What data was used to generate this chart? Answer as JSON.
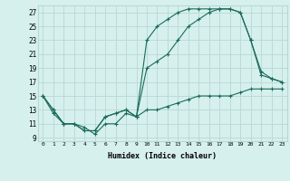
{
  "xlabel": "Humidex (Indice chaleur)",
  "bg_color": "#d6f0ee",
  "grid_color": "#b8d8d4",
  "line_color": "#1a6b5a",
  "line_width": 0.8,
  "marker": "+",
  "marker_size": 3.5,
  "marker_ew": 0.8,
  "xlim": [
    -0.5,
    23.5
  ],
  "ylim": [
    8.5,
    28.0
  ],
  "xticks": [
    0,
    1,
    2,
    3,
    4,
    5,
    6,
    7,
    8,
    9,
    10,
    11,
    12,
    13,
    14,
    15,
    16,
    17,
    18,
    19,
    20,
    21,
    22,
    23
  ],
  "yticks": [
    9,
    11,
    13,
    15,
    17,
    19,
    21,
    23,
    25,
    27
  ],
  "series1_x": [
    0,
    1,
    2,
    3,
    4,
    5,
    6,
    7,
    8,
    9,
    10,
    11,
    12,
    13,
    14,
    15,
    16,
    17,
    18,
    19,
    20,
    21,
    22,
    23
  ],
  "series1_y": [
    15,
    13,
    11,
    11,
    10,
    10,
    12,
    12.5,
    13,
    12,
    23,
    25,
    26,
    27,
    27.5,
    27.5,
    27.5,
    27.5,
    27.5,
    27,
    23,
    18,
    17.5,
    17
  ],
  "series2_x": [
    0,
    1,
    2,
    3,
    4,
    5,
    6,
    7,
    8,
    9,
    10,
    11,
    12,
    13,
    14,
    15,
    16,
    17,
    18,
    19,
    20,
    21,
    22,
    23
  ],
  "series2_y": [
    15,
    13,
    11,
    11,
    10,
    10,
    12,
    12.5,
    13,
    12,
    19,
    20,
    21,
    23,
    25,
    26,
    27,
    27.5,
    27.5,
    27,
    23,
    18.5,
    17.5,
    17
  ],
  "series3_x": [
    0,
    1,
    2,
    3,
    4,
    5,
    6,
    7,
    8,
    9,
    10,
    11,
    12,
    13,
    14,
    15,
    16,
    17,
    18,
    19,
    20,
    21,
    22,
    23
  ],
  "series3_y": [
    15,
    12.5,
    11,
    11,
    10.5,
    9.5,
    11,
    11,
    12.5,
    12,
    13,
    13,
    13.5,
    14,
    14.5,
    15,
    15,
    15,
    15,
    15.5,
    16,
    16,
    16,
    16
  ]
}
